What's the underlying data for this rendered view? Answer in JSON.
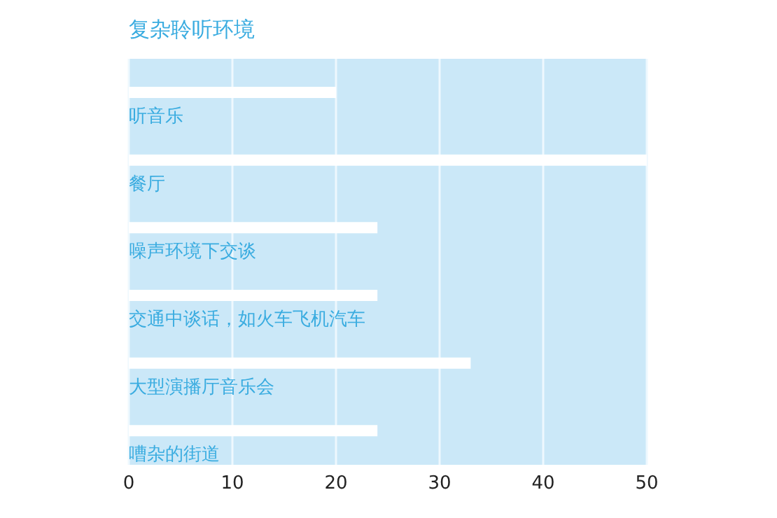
{
  "chart_data": {
    "type": "bar",
    "orientation": "horizontal",
    "title": "复杂聆听环境",
    "categories": [
      "听音乐",
      "餐厅",
      "噪声环境下交谈",
      "交通中谈话，如火车飞机汽车",
      "大型演播厅音乐会",
      "嘈杂的街道"
    ],
    "values": [
      20,
      50,
      24,
      24,
      33,
      24
    ],
    "color": "#ffffff",
    "xlim": [
      0,
      50
    ],
    "xticks": [
      0,
      10,
      20,
      30,
      40,
      50
    ],
    "grid": "x"
  }
}
